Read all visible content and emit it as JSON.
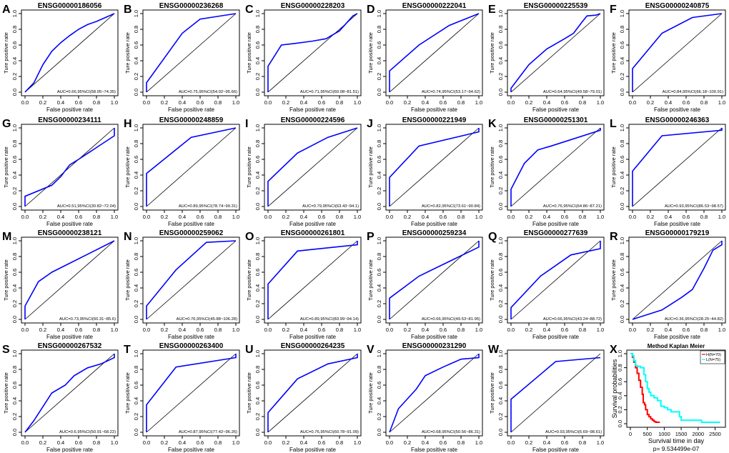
{
  "common": {
    "xlabel": "False positive rate",
    "ylabel": "Ture positive rate",
    "ticks": [
      "0.0",
      "0.2",
      "0.4",
      "0.6",
      "0.8",
      "1.0"
    ],
    "curve_color": "#0000ff",
    "diag_color": "#000000"
  },
  "chart_data": [
    {
      "type": "line",
      "letter": "A",
      "title": "ENSG00000186056",
      "auc_label": "AUC=0.66,95%CI(58.05~74.35)",
      "x": [
        0,
        0.1,
        0.2,
        0.3,
        0.4,
        0.5,
        0.6,
        0.7,
        0.8,
        0.9,
        1
      ],
      "y": [
        0,
        0.12,
        0.35,
        0.52,
        0.63,
        0.72,
        0.8,
        0.86,
        0.9,
        0.95,
        1
      ],
      "xlim": [
        0,
        1
      ],
      "ylim": [
        0,
        1
      ]
    },
    {
      "type": "line",
      "letter": "B",
      "title": "ENSG00000236268",
      "auc_label": "AUC=0.75,95%CI(54.02~95.66)",
      "x": [
        0,
        0,
        0.4,
        0.6,
        1
      ],
      "y": [
        0,
        0.12,
        0.75,
        0.93,
        1
      ],
      "xlim": [
        0,
        1
      ],
      "ylim": [
        0,
        1
      ]
    },
    {
      "type": "line",
      "letter": "C",
      "title": "ENSG00000228203",
      "auc_label": "AUC=0.71,95%CI(60.08~81.51)",
      "x": [
        0,
        0,
        0.15,
        0.3,
        0.5,
        0.65,
        0.8,
        0.95,
        1
      ],
      "y": [
        0,
        0.33,
        0.6,
        0.62,
        0.65,
        0.68,
        0.78,
        0.97,
        1
      ],
      "xlim": [
        0,
        1
      ],
      "ylim": [
        0,
        1
      ]
    },
    {
      "type": "line",
      "letter": "D",
      "title": "ENSG00000222041",
      "auc_label": "AUC=0.74,95%CI(53.17~94.62)",
      "x": [
        0,
        0,
        0.33,
        0.67,
        1
      ],
      "y": [
        0,
        0.27,
        0.6,
        0.85,
        1
      ],
      "xlim": [
        0,
        1
      ],
      "ylim": [
        0,
        1
      ]
    },
    {
      "type": "line",
      "letter": "E",
      "title": "ENSG00000225539",
      "auc_label": "AUC=0.64,95%CI(49.58~79.01)",
      "x": [
        0,
        0,
        0.1,
        0.2,
        0.4,
        0.6,
        0.7,
        0.8,
        0.85,
        0.95,
        1
      ],
      "y": [
        0,
        0.05,
        0.2,
        0.35,
        0.55,
        0.68,
        0.75,
        0.9,
        0.97,
        0.98,
        1
      ],
      "xlim": [
        0,
        1
      ],
      "ylim": [
        0,
        1
      ]
    },
    {
      "type": "line",
      "letter": "F",
      "title": "ENSG00000240875",
      "auc_label": "AUC=0.84,95%CI(66.18~100.91)",
      "x": [
        0,
        0,
        0.33,
        0.67,
        1
      ],
      "y": [
        0,
        0.3,
        0.75,
        0.95,
        1
      ],
      "xlim": [
        0,
        1
      ],
      "ylim": [
        0,
        1
      ]
    },
    {
      "type": "line",
      "letter": "G",
      "title": "ENSG00000234111",
      "auc_label": "AUC=0.51,95%CI(30.82~72.04)",
      "x": [
        0,
        0,
        0.3,
        0.4,
        0.5,
        0.6,
        0.8,
        1,
        1
      ],
      "y": [
        0,
        0.13,
        0.27,
        0.38,
        0.53,
        0.6,
        0.75,
        0.9,
        1
      ],
      "xlim": [
        0,
        1
      ],
      "ylim": [
        0,
        1
      ]
    },
    {
      "type": "line",
      "letter": "H",
      "title": "ENSG00000248859",
      "auc_label": "AUC=0.89,95%CI(78.74~99.31)",
      "x": [
        0,
        0,
        0.5,
        1
      ],
      "y": [
        0,
        0.42,
        0.88,
        1
      ],
      "xlim": [
        0,
        1
      ],
      "ylim": [
        0,
        1
      ]
    },
    {
      "type": "line",
      "letter": "I",
      "title": "ENSG00000224596",
      "auc_label": "AUC=0.79,95%CI(63.43~94.1)",
      "x": [
        0,
        0,
        0.33,
        0.67,
        1
      ],
      "y": [
        0,
        0.32,
        0.68,
        0.88,
        1
      ],
      "xlim": [
        0,
        1
      ],
      "ylim": [
        0,
        1
      ]
    },
    {
      "type": "line",
      "letter": "J",
      "title": "ENSG00000221949",
      "auc_label": "AUC=0.82,95%CI(73.61~90.84)",
      "x": [
        0,
        0,
        0.33,
        1,
        1
      ],
      "y": [
        0,
        0.37,
        0.77,
        0.95,
        1
      ],
      "xlim": [
        0,
        1
      ],
      "ylim": [
        0,
        1
      ]
    },
    {
      "type": "line",
      "letter": "K",
      "title": "ENSG00000251301",
      "auc_label": "AUC=0.76,95%CI(64.86~87.21)",
      "x": [
        0,
        0,
        0.15,
        0.3,
        0.45,
        1,
        1
      ],
      "y": [
        0,
        0.22,
        0.55,
        0.72,
        0.77,
        0.97,
        1
      ],
      "xlim": [
        0,
        1
      ],
      "ylim": [
        0,
        1
      ]
    },
    {
      "type": "line",
      "letter": "L",
      "title": "ENSG00000246363",
      "auc_label": "AUC=0.93,95%CI(86.53~98.57)",
      "x": [
        0,
        0,
        0.33,
        1,
        1
      ],
      "y": [
        0,
        0.45,
        0.9,
        0.97,
        1
      ],
      "xlim": [
        0,
        1
      ],
      "ylim": [
        0,
        1
      ]
    },
    {
      "type": "line",
      "letter": "M",
      "title": "ENSG00000238121",
      "auc_label": "AUC=0.73,95%CI(60.31~85.6)",
      "x": [
        0,
        0,
        0.15,
        0.3,
        1
      ],
      "y": [
        0,
        0.17,
        0.48,
        0.6,
        1
      ],
      "xlim": [
        0,
        1
      ],
      "ylim": [
        0,
        1
      ]
    },
    {
      "type": "line",
      "letter": "N",
      "title": "ENSG00000259062",
      "auc_label": "AUC=0.76,95%CI(45.88~106.28)",
      "x": [
        0,
        0,
        0.33,
        0.67,
        1
      ],
      "y": [
        0,
        0.17,
        0.63,
        0.98,
        1
      ],
      "xlim": [
        0,
        1
      ],
      "ylim": [
        0,
        1
      ]
    },
    {
      "type": "line",
      "letter": "O",
      "title": "ENSG00000261801",
      "auc_label": "AUC=0.89,95%CI(83.99~94.14)",
      "x": [
        0,
        0,
        0.33,
        1,
        1
      ],
      "y": [
        0,
        0.45,
        0.87,
        0.95,
        1
      ],
      "xlim": [
        0,
        1
      ],
      "ylim": [
        0,
        1
      ]
    },
    {
      "type": "line",
      "letter": "P",
      "title": "ENSG00000259234",
      "auc_label": "AUC=0.66,95%CI(49.53~81.95)",
      "x": [
        0,
        0,
        0.33,
        1,
        1
      ],
      "y": [
        0,
        0.27,
        0.55,
        0.92,
        1
      ],
      "xlim": [
        0,
        1
      ],
      "ylim": [
        0,
        1
      ]
    },
    {
      "type": "line",
      "letter": "Q",
      "title": "ENSG00000277639",
      "auc_label": "AUC=0.66,95%CI(43.24~88.72)",
      "x": [
        0,
        0,
        0.33,
        0.67,
        1,
        1
      ],
      "y": [
        0,
        0.15,
        0.55,
        0.82,
        0.9,
        1
      ],
      "xlim": [
        0,
        1
      ],
      "ylim": [
        0,
        1
      ]
    },
    {
      "type": "line",
      "letter": "R",
      "title": "ENSG00000179219",
      "auc_label": "AUC=0.36,95%CI(28.25~44.82)",
      "x": [
        0,
        0.33,
        0.55,
        0.67,
        0.8,
        0.9,
        1,
        1
      ],
      "y": [
        0,
        0.12,
        0.28,
        0.38,
        0.65,
        0.88,
        0.95,
        1
      ],
      "xlim": [
        0,
        1
      ],
      "ylim": [
        0,
        1
      ]
    },
    {
      "type": "line",
      "letter": "S",
      "title": "ENSG00000267532",
      "auc_label": "AUC=0.6,95%CI(50.91~68.22)",
      "x": [
        0,
        0.1,
        0.3,
        0.45,
        0.55,
        0.7,
        0.85,
        1,
        1
      ],
      "y": [
        0,
        0.15,
        0.5,
        0.6,
        0.72,
        0.82,
        0.87,
        0.95,
        1
      ],
      "xlim": [
        0,
        1
      ],
      "ylim": [
        0,
        1
      ]
    },
    {
      "type": "line",
      "letter": "T",
      "title": "ENSG00000263400",
      "auc_label": "AUC=0.87,95%CI(77.42~96.26)",
      "x": [
        0,
        0,
        0.33,
        1,
        1
      ],
      "y": [
        0,
        0.35,
        0.83,
        0.95,
        1
      ],
      "xlim": [
        0,
        1
      ],
      "ylim": [
        0,
        1
      ]
    },
    {
      "type": "line",
      "letter": "U",
      "title": "ENSG00000264235",
      "auc_label": "AUC=0.76,95%CI(60.78~91.09)",
      "x": [
        0,
        0,
        0.33,
        0.67,
        1,
        1
      ],
      "y": [
        0,
        0.25,
        0.68,
        0.87,
        0.95,
        1
      ],
      "xlim": [
        0,
        1
      ],
      "ylim": [
        0,
        1
      ]
    },
    {
      "type": "line",
      "letter": "V",
      "title": "ENSG00000231290",
      "auc_label": "AUC=0.68,95%CI(50.56~86.31)",
      "x": [
        0,
        0.1,
        0.3,
        0.4,
        0.6,
        0.8,
        1,
        1
      ],
      "y": [
        0,
        0.3,
        0.55,
        0.72,
        0.83,
        0.93,
        0.95,
        1
      ],
      "xlim": [
        0,
        1
      ],
      "ylim": [
        0,
        1
      ]
    },
    {
      "type": "line",
      "letter": "W",
      "title": "",
      "auc_label": "AUC=0.93,95%CI(6.69~98.61)",
      "x": [
        0,
        0,
        0.5,
        1
      ],
      "y": [
        0,
        0.42,
        0.9,
        0.95
      ],
      "xlim": [
        0,
        1
      ],
      "ylim": [
        0,
        1
      ],
      "serif": true
    },
    {
      "type": "line",
      "letter": "X",
      "title": "Method Kaplan Meier",
      "kaplan_meier": true,
      "xlabel": "Survival time in day",
      "ylabel": "Survival probabilities",
      "pvalue": "p= 9.534499e-07",
      "x_ticks": [
        "0",
        "500",
        "1000",
        "1500",
        "2000",
        "2500"
      ],
      "y_ticks": [
        "0.0",
        "0.2",
        "0.4",
        "0.6",
        "0.8",
        "1.0"
      ],
      "xlim": [
        0,
        2700
      ],
      "ylim": [
        0,
        1
      ],
      "series": [
        {
          "name": "H(N=70)",
          "color": "#ff0000",
          "x": [
            0,
            60,
            100,
            150,
            200,
            250,
            300,
            350,
            380,
            420,
            450,
            500,
            550,
            600,
            650,
            700,
            750,
            800,
            870
          ],
          "y": [
            1,
            0.95,
            0.88,
            0.8,
            0.72,
            0.62,
            0.52,
            0.42,
            0.3,
            0.27,
            0.2,
            0.13,
            0.1,
            0.07,
            0.05,
            0.03,
            0.02,
            0.02,
            0.02
          ]
        },
        {
          "name": "L(N=75)",
          "color": "#00ffff",
          "x": [
            0,
            60,
            100,
            150,
            200,
            300,
            400,
            450,
            500,
            550,
            600,
            700,
            800,
            900,
            1000,
            1100,
            1200,
            1400,
            1450,
            1500,
            1600,
            2100,
            2650
          ],
          "y": [
            1,
            0.97,
            0.9,
            0.83,
            0.82,
            0.8,
            0.7,
            0.6,
            0.5,
            0.45,
            0.4,
            0.37,
            0.33,
            0.25,
            0.23,
            0.2,
            0.17,
            0.17,
            0.1,
            0.05,
            0.05,
            0.02,
            0.02
          ]
        }
      ]
    }
  ]
}
